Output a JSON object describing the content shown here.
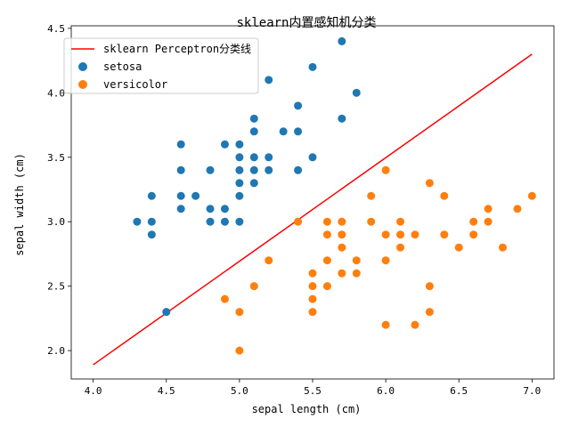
{
  "chart_data": {
    "type": "scatter",
    "title": "sklearn内置感知机分类",
    "xlabel": "sepal length (cm)",
    "ylabel": "sepal width (cm)",
    "xlim": [
      3.85,
      7.15
    ],
    "ylim": [
      1.78,
      4.52
    ],
    "xticks": [
      "4.0",
      "4.5",
      "5.0",
      "5.5",
      "6.0",
      "6.5",
      "7.0"
    ],
    "yticks": [
      "2.0",
      "2.5",
      "3.0",
      "3.5",
      "4.0",
      "4.5"
    ],
    "grid": false,
    "legend_position": "top-left",
    "line": {
      "name": "sklearn Perceptron分类线",
      "color": "#ff0000",
      "x": [
        4.0,
        7.0
      ],
      "y": [
        1.89,
        4.3
      ]
    },
    "series": [
      {
        "name": "setosa",
        "color": "#1f77b4",
        "points": [
          [
            4.3,
            3.0
          ],
          [
            4.4,
            3.2
          ],
          [
            4.4,
            3.0
          ],
          [
            4.4,
            2.9
          ],
          [
            4.5,
            2.3
          ],
          [
            4.6,
            3.6
          ],
          [
            4.6,
            3.4
          ],
          [
            4.6,
            3.2
          ],
          [
            4.6,
            3.1
          ],
          [
            4.7,
            3.2
          ],
          [
            4.8,
            3.4
          ],
          [
            4.8,
            3.1
          ],
          [
            4.8,
            3.0
          ],
          [
            4.9,
            3.6
          ],
          [
            4.9,
            3.1
          ],
          [
            4.9,
            3.0
          ],
          [
            5.0,
            3.6
          ],
          [
            5.0,
            3.5
          ],
          [
            5.0,
            3.4
          ],
          [
            5.0,
            3.3
          ],
          [
            5.0,
            3.2
          ],
          [
            5.0,
            3.0
          ],
          [
            5.1,
            3.8
          ],
          [
            5.1,
            3.7
          ],
          [
            5.1,
            3.5
          ],
          [
            5.1,
            3.4
          ],
          [
            5.1,
            3.3
          ],
          [
            5.2,
            4.1
          ],
          [
            5.2,
            3.5
          ],
          [
            5.2,
            3.4
          ],
          [
            5.3,
            3.7
          ],
          [
            5.4,
            3.9
          ],
          [
            5.4,
            3.7
          ],
          [
            5.4,
            3.4
          ],
          [
            5.5,
            4.2
          ],
          [
            5.5,
            3.5
          ],
          [
            5.7,
            4.4
          ],
          [
            5.7,
            3.8
          ],
          [
            5.8,
            4.0
          ]
        ]
      },
      {
        "name": "versicolor",
        "color": "#ff7f0e",
        "points": [
          [
            4.9,
            2.4
          ],
          [
            5.0,
            2.3
          ],
          [
            5.0,
            2.0
          ],
          [
            5.1,
            2.5
          ],
          [
            5.2,
            2.7
          ],
          [
            5.4,
            3.0
          ],
          [
            5.5,
            2.6
          ],
          [
            5.5,
            2.5
          ],
          [
            5.5,
            2.4
          ],
          [
            5.5,
            2.3
          ],
          [
            5.6,
            3.0
          ],
          [
            5.6,
            2.9
          ],
          [
            5.6,
            2.7
          ],
          [
            5.6,
            2.5
          ],
          [
            5.7,
            3.0
          ],
          [
            5.7,
            2.9
          ],
          [
            5.7,
            2.8
          ],
          [
            5.7,
            2.6
          ],
          [
            5.8,
            2.7
          ],
          [
            5.8,
            2.6
          ],
          [
            5.9,
            3.2
          ],
          [
            5.9,
            3.0
          ],
          [
            6.0,
            3.4
          ],
          [
            6.0,
            2.9
          ],
          [
            6.0,
            2.7
          ],
          [
            6.0,
            2.2
          ],
          [
            6.1,
            3.0
          ],
          [
            6.1,
            2.9
          ],
          [
            6.1,
            2.8
          ],
          [
            6.2,
            2.9
          ],
          [
            6.2,
            2.2
          ],
          [
            6.3,
            3.3
          ],
          [
            6.3,
            2.5
          ],
          [
            6.3,
            2.3
          ],
          [
            6.4,
            3.2
          ],
          [
            6.4,
            2.9
          ],
          [
            6.5,
            2.8
          ],
          [
            6.6,
            3.0
          ],
          [
            6.6,
            2.9
          ],
          [
            6.7,
            3.1
          ],
          [
            6.7,
            3.0
          ],
          [
            6.8,
            2.8
          ],
          [
            6.9,
            3.1
          ],
          [
            7.0,
            3.2
          ]
        ]
      }
    ]
  }
}
